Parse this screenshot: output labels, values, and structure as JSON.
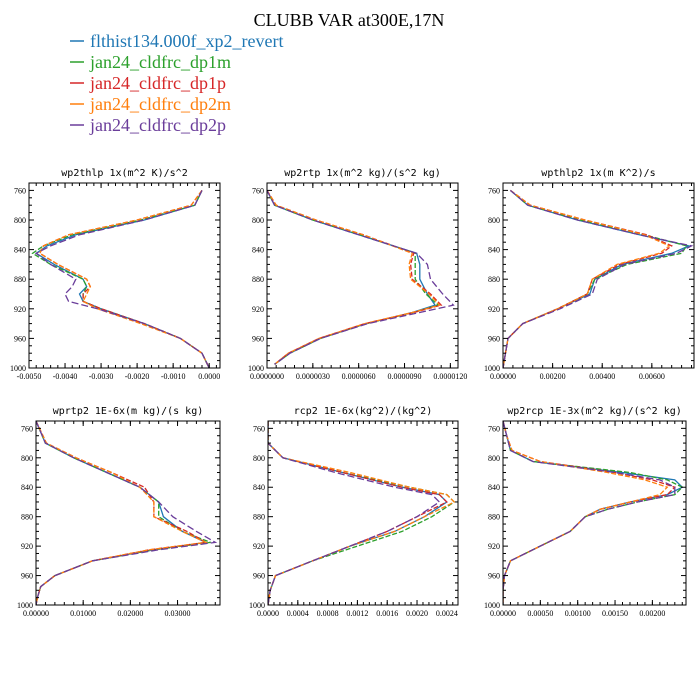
{
  "figure": {
    "title": "CLUBB VAR at300E,17N",
    "colors": {
      "flthist134.000f_xp2_revert": "#1f77b4",
      "jan24_cldfrc_dp1m": "#2ca02c",
      "jan24_cldfrc_dp1p": "#d62728",
      "jan24_cldfrc_dp2m": "#ff7f0e",
      "jan24_cldfrc_dp2p": "#6a3d9a"
    },
    "legend": [
      {
        "label": "flthist134.000f_xp2_revert",
        "color": "#1f77b4",
        "dash": "solid"
      },
      {
        "label": "jan24_cldfrc_dp1m",
        "color": "#2ca02c",
        "dash": "dashed"
      },
      {
        "label": "jan24_cldfrc_dp1p",
        "color": "#d62728",
        "dash": "dashed"
      },
      {
        "label": "jan24_cldfrc_dp2m",
        "color": "#ff7f0e",
        "dash": "dashed"
      },
      {
        "label": "jan24_cldfrc_dp2p",
        "color": "#6a3d9a",
        "dash": "dashed"
      }
    ]
  },
  "chart_data": [
    {
      "type": "line",
      "title": "wp2thlp  1x(m^2 K)/s^2",
      "xlim": [
        -0.005,
        0.0003
      ],
      "ylim": [
        1000,
        750
      ],
      "grid": false,
      "xticks": [
        -0.005,
        -0.004,
        -0.003,
        -0.002,
        -0.001,
        0.0
      ],
      "xtick_labels": [
        "-0.0050",
        "-0.0040",
        "-0.0030",
        "-0.0020",
        "-0.0010",
        "0.0000"
      ],
      "yticks": [
        760,
        800,
        840,
        880,
        920,
        960,
        1000
      ],
      "y": [
        760,
        780,
        800,
        820,
        835,
        845,
        860,
        880,
        890,
        900,
        910,
        920,
        940,
        960,
        980,
        1000
      ],
      "series": [
        {
          "name": "flthist134.000f_xp2_revert",
          "values": [
            -0.0002,
            -0.0004,
            -0.0018,
            -0.0037,
            -0.0045,
            -0.0048,
            -0.0043,
            -0.0035,
            -0.0034,
            -0.0036,
            -0.0035,
            -0.003,
            -0.0018,
            -0.0008,
            -0.0002,
            0.0
          ]
        },
        {
          "name": "jan24_cldfrc_dp1m",
          "values": [
            -0.0002,
            -0.0004,
            -0.0019,
            -0.0038,
            -0.0046,
            -0.0049,
            -0.0044,
            -0.0035,
            -0.0034,
            -0.0035,
            -0.0035,
            -0.003,
            -0.0018,
            -0.0008,
            -0.0002,
            0.0
          ]
        },
        {
          "name": "jan24_cldfrc_dp1p",
          "values": [
            -0.0002,
            -0.0005,
            -0.002,
            -0.0039,
            -0.0046,
            -0.0047,
            -0.0042,
            -0.0034,
            -0.0033,
            -0.0035,
            -0.0035,
            -0.003,
            -0.0018,
            -0.0008,
            -0.0002,
            0.0
          ]
        },
        {
          "name": "jan24_cldfrc_dp2m",
          "values": [
            -0.0002,
            -0.0005,
            -0.002,
            -0.0039,
            -0.0046,
            -0.0047,
            -0.0042,
            -0.0034,
            -0.0033,
            -0.0034,
            -0.0035,
            -0.0031,
            -0.0019,
            -0.0008,
            -0.0002,
            0.0
          ]
        },
        {
          "name": "jan24_cldfrc_dp2p",
          "values": [
            -0.0002,
            -0.0004,
            -0.0018,
            -0.0036,
            -0.0044,
            -0.0048,
            -0.0044,
            -0.0037,
            -0.0038,
            -0.004,
            -0.0039,
            -0.0031,
            -0.0018,
            -0.0008,
            -0.0002,
            0.0
          ]
        }
      ]
    },
    {
      "type": "line",
      "title": "wp2rtp  1x(m^2 kg)/(s^2 kg)",
      "xlim": [
        0.0,
        0.000125
      ],
      "ylim": [
        1000,
        750
      ],
      "grid": false,
      "xticks": [
        0.0,
        3e-05,
        6e-05,
        9e-05,
        0.00012
      ],
      "xtick_labels": [
        "0.0000000",
        "0.0000030",
        "0.0000060",
        "0.0000090",
        "0.0000120"
      ],
      "yticks": [
        760,
        800,
        840,
        880,
        920,
        960,
        1000
      ],
      "y": [
        760,
        780,
        800,
        820,
        845,
        860,
        880,
        900,
        915,
        925,
        940,
        960,
        980,
        995
      ],
      "series": [
        {
          "name": "flthist134.000f_xp2_revert",
          "values": [
            0.0,
            5e-06,
            3e-05,
            6e-05,
            9.8e-05,
            0.0001,
            0.0001,
            0.000105,
            0.00011,
            9.5e-05,
            6.5e-05,
            3.5e-05,
            1.5e-05,
            5e-06
          ]
        },
        {
          "name": "jan24_cldfrc_dp1m",
          "values": [
            0.0,
            5e-06,
            3e-05,
            6.1e-05,
            9.7e-05,
            9.7e-05,
            9.7e-05,
            0.000104,
            0.000112,
            9.6e-05,
            6.5e-05,
            3.5e-05,
            1.5e-05,
            5e-06
          ]
        },
        {
          "name": "jan24_cldfrc_dp1p",
          "values": [
            0.0,
            6e-06,
            3.2e-05,
            6.3e-05,
            9.6e-05,
            9.4e-05,
            9.5e-05,
            0.000107,
            0.000114,
            9.6e-05,
            6.4e-05,
            3.4e-05,
            1.4e-05,
            5e-06
          ]
        },
        {
          "name": "jan24_cldfrc_dp2m",
          "values": [
            0.0,
            6e-06,
            3.2e-05,
            6.3e-05,
            9.5e-05,
            9.3e-05,
            9.4e-05,
            0.000106,
            0.000113,
            9.5e-05,
            6.4e-05,
            3.4e-05,
            1.4e-05,
            5e-06
          ]
        },
        {
          "name": "jan24_cldfrc_dp2p",
          "values": [
            0.0,
            5e-06,
            3e-05,
            6e-05,
            9.8e-05,
            0.000105,
            0.000107,
            0.000115,
            0.000122,
            0.0001,
            6.6e-05,
            3.5e-05,
            1.5e-05,
            5e-06
          ]
        }
      ]
    },
    {
      "type": "line",
      "title": "wpthlp2  1x(m K^2)/s",
      "xlim": [
        0.0,
        0.0077
      ],
      "ylim": [
        1000,
        750
      ],
      "grid": false,
      "xticks": [
        0.0,
        0.002,
        0.004,
        0.006
      ],
      "xtick_labels": [
        "0.00000",
        "0.00200",
        "0.00400",
        "0.00600"
      ],
      "yticks": [
        760,
        800,
        840,
        880,
        920,
        960,
        1000
      ],
      "y": [
        760,
        780,
        800,
        820,
        835,
        845,
        860,
        880,
        900,
        920,
        940,
        960,
        980,
        1000
      ],
      "series": [
        {
          "name": "flthist134.000f_xp2_revert",
          "values": [
            0.0003,
            0.001,
            0.003,
            0.0055,
            0.0075,
            0.0068,
            0.0048,
            0.0037,
            0.0035,
            0.0022,
            0.0008,
            0.0002,
            0.0001,
            0.0
          ]
        },
        {
          "name": "jan24_cldfrc_dp1m",
          "values": [
            0.0003,
            0.001,
            0.0031,
            0.0057,
            0.0074,
            0.0072,
            0.005,
            0.0037,
            0.0034,
            0.0022,
            0.0008,
            0.0002,
            0.0001,
            0.0
          ]
        },
        {
          "name": "jan24_cldfrc_dp1p",
          "values": [
            0.0003,
            0.0011,
            0.0033,
            0.0058,
            0.0068,
            0.0064,
            0.0047,
            0.0036,
            0.0034,
            0.0022,
            0.0008,
            0.0002,
            0.0001,
            0.0
          ]
        },
        {
          "name": "jan24_cldfrc_dp2m",
          "values": [
            0.0003,
            0.0011,
            0.0033,
            0.0057,
            0.0067,
            0.0063,
            0.0046,
            0.0036,
            0.0034,
            0.0022,
            0.0008,
            0.0002,
            0.0001,
            0.0
          ]
        },
        {
          "name": "jan24_cldfrc_dp2p",
          "values": [
            0.0003,
            0.001,
            0.003,
            0.0055,
            0.0076,
            0.007,
            0.0049,
            0.0038,
            0.0036,
            0.0023,
            0.0008,
            0.0002,
            0.0001,
            0.0
          ]
        }
      ]
    },
    {
      "type": "line",
      "title": "wprtp2  1E-6x(m kg)/(s kg)",
      "xlim": [
        0.0,
        0.039
      ],
      "ylim": [
        1000,
        750
      ],
      "grid": false,
      "xticks": [
        0.0,
        0.01,
        0.02,
        0.03
      ],
      "xtick_labels": [
        "0.00000",
        "0.01000",
        "0.02000",
        "0.03000"
      ],
      "yticks": [
        760,
        800,
        840,
        880,
        920,
        960,
        1000
      ],
      "y": [
        750,
        780,
        800,
        820,
        840,
        860,
        880,
        900,
        915,
        925,
        940,
        960,
        975,
        990,
        1000
      ],
      "series": [
        {
          "name": "flthist134.000f_xp2_revert",
          "values": [
            0.0,
            0.002,
            0.008,
            0.015,
            0.022,
            0.026,
            0.027,
            0.031,
            0.036,
            0.025,
            0.012,
            0.004,
            0.001,
            0.0003,
            0.0
          ]
        },
        {
          "name": "jan24_cldfrc_dp1m",
          "values": [
            0.0,
            0.002,
            0.008,
            0.015,
            0.022,
            0.026,
            0.026,
            0.031,
            0.037,
            0.025,
            0.012,
            0.004,
            0.001,
            0.0003,
            0.0
          ]
        },
        {
          "name": "jan24_cldfrc_dp1p",
          "values": [
            0.0,
            0.0022,
            0.0085,
            0.016,
            0.023,
            0.025,
            0.025,
            0.032,
            0.036,
            0.024,
            0.012,
            0.004,
            0.001,
            0.0003,
            0.0
          ]
        },
        {
          "name": "jan24_cldfrc_dp2m",
          "values": [
            0.0,
            0.0022,
            0.0085,
            0.016,
            0.022,
            0.025,
            0.025,
            0.031,
            0.036,
            0.024,
            0.012,
            0.004,
            0.001,
            0.0003,
            0.0
          ]
        },
        {
          "name": "jan24_cldfrc_dp2p",
          "values": [
            0.0,
            0.002,
            0.008,
            0.015,
            0.022,
            0.026,
            0.029,
            0.034,
            0.038,
            0.026,
            0.012,
            0.004,
            0.001,
            0.0003,
            0.0
          ]
        }
      ]
    },
    {
      "type": "line",
      "title": "rcp2  1E-6x(kg^2)/(kg^2)",
      "xlim": [
        0.0,
        0.00255
      ],
      "ylim": [
        1000,
        750
      ],
      "grid": false,
      "xticks": [
        0.0,
        0.0004,
        0.0008,
        0.0012,
        0.0016,
        0.002,
        0.0024
      ],
      "xtick_labels": [
        "0.0000",
        "0.0004",
        "0.0008",
        "0.0012",
        "0.0016",
        "0.0020",
        "0.0024"
      ],
      "yticks": [
        760,
        800,
        840,
        880,
        920,
        960,
        1000
      ],
      "y": [
        750,
        780,
        800,
        820,
        840,
        850,
        860,
        880,
        900,
        920,
        940,
        960,
        980,
        1000
      ],
      "series": [
        {
          "name": "flthist134.000f_xp2_revert",
          "values": [
            0.0,
            0.0,
            0.0002,
            0.001,
            0.0018,
            0.0023,
            0.0024,
            0.0021,
            0.0017,
            0.0011,
            0.0006,
            0.0001,
            3e-05,
            0.0
          ]
        },
        {
          "name": "jan24_cldfrc_dp1m",
          "values": [
            0.0,
            0.0,
            0.0002,
            0.001,
            0.0019,
            0.0024,
            0.0025,
            0.0022,
            0.0018,
            0.0012,
            0.0006,
            0.0001,
            3e-05,
            0.0
          ]
        },
        {
          "name": "jan24_cldfrc_dp1p",
          "values": [
            0.0,
            0.0,
            0.0002,
            0.001,
            0.0018,
            0.0023,
            0.0024,
            0.002,
            0.0016,
            0.0011,
            0.0006,
            0.0001,
            3e-05,
            0.0
          ]
        },
        {
          "name": "jan24_cldfrc_dp2m",
          "values": [
            0.0,
            0.0,
            0.0002,
            0.0011,
            0.0019,
            0.0024,
            0.0025,
            0.0021,
            0.0017,
            0.0011,
            0.0006,
            0.0001,
            3e-05,
            0.0
          ]
        },
        {
          "name": "jan24_cldfrc_dp2p",
          "values": [
            0.0,
            0.0,
            0.0002,
            0.0009,
            0.0017,
            0.0022,
            0.0023,
            0.002,
            0.0016,
            0.0011,
            0.0006,
            0.0001,
            3e-05,
            0.0
          ]
        }
      ]
    },
    {
      "type": "line",
      "title": "wp2rcp  1E-3x(m^2 kg)/(s^2 kg)",
      "xlim": [
        0.0,
        0.00245
      ],
      "ylim": [
        1000,
        750
      ],
      "grid": false,
      "xticks": [
        0.0,
        0.0005,
        0.001,
        0.0015,
        0.002
      ],
      "xtick_labels": [
        "0.00000",
        "0.00050",
        "0.00100",
        "0.00150",
        "0.00200"
      ],
      "yticks": [
        760,
        800,
        840,
        880,
        920,
        960,
        1000
      ],
      "y": [
        750,
        770,
        790,
        805,
        820,
        830,
        840,
        850,
        860,
        870,
        880,
        900,
        920,
        940,
        960,
        980,
        1000
      ],
      "series": [
        {
          "name": "flthist134.000f_xp2_revert",
          "values": [
            0.0,
            5e-05,
            0.0001,
            0.0004,
            0.0016,
            0.0023,
            0.0024,
            0.0022,
            0.0017,
            0.0013,
            0.0011,
            0.0009,
            0.0005,
            0.0001,
            2e-05,
            0.0,
            0.0
          ]
        },
        {
          "name": "jan24_cldfrc_dp1m",
          "values": [
            0.0,
            5e-05,
            0.0001,
            0.0004,
            0.0017,
            0.0022,
            0.0024,
            0.0023,
            0.0018,
            0.0014,
            0.0011,
            0.0009,
            0.0005,
            0.0001,
            2e-05,
            0.0,
            0.0
          ]
        },
        {
          "name": "jan24_cldfrc_dp1p",
          "values": [
            0.0,
            5e-05,
            0.00012,
            0.0005,
            0.0015,
            0.002,
            0.0023,
            0.0022,
            0.0017,
            0.0013,
            0.0011,
            0.0009,
            0.0005,
            0.0001,
            2e-05,
            0.0,
            0.0
          ]
        },
        {
          "name": "jan24_cldfrc_dp2m",
          "values": [
            0.0,
            5e-05,
            0.00012,
            0.0005,
            0.0014,
            0.0019,
            0.0022,
            0.0021,
            0.0017,
            0.0013,
            0.0011,
            0.0009,
            0.0005,
            0.0001,
            2e-05,
            0.0,
            0.0
          ]
        },
        {
          "name": "jan24_cldfrc_dp2p",
          "values": [
            0.0,
            5e-05,
            0.0001,
            0.0004,
            0.0015,
            0.0021,
            0.0023,
            0.0023,
            0.0018,
            0.0014,
            0.0011,
            0.0009,
            0.0005,
            0.0001,
            2e-05,
            0.0,
            0.0
          ]
        }
      ]
    }
  ]
}
